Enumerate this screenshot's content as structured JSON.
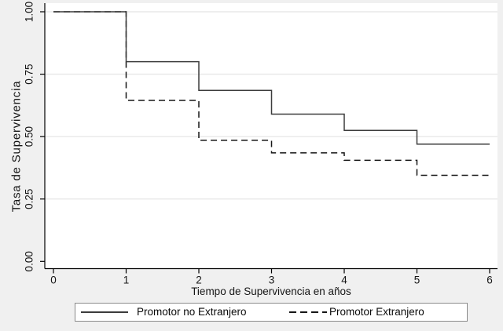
{
  "colors": {
    "figure_background": "#f0f0f0",
    "plot_background": "#ffffff",
    "gridline": "#e8e8e8",
    "axis": "#000000",
    "solid_series": "#3c3c3c",
    "dashed_series": "#161616",
    "legend_border": "#8a8a8a",
    "text": "#161616"
  },
  "chart_data": {
    "type": "line",
    "subtype": "kaplan-meier-step",
    "title": "",
    "xlabel": "Tiempo de Supervivencia en años",
    "ylabel": "Tasa de Supervivencia",
    "xlim": [
      0,
      6
    ],
    "ylim": [
      0,
      1
    ],
    "xticks": [
      "0",
      "1",
      "2",
      "3",
      "4",
      "5",
      "6"
    ],
    "yticks": [
      "0.00",
      "0.25",
      "0.50",
      "0.75",
      "1.00"
    ],
    "gridline_values": [
      0.25,
      0.5,
      0.75,
      1.0
    ],
    "grid": true,
    "legend_position": "bottom-center",
    "series": [
      {
        "name": "Promotor no Extranjero",
        "style": "solid",
        "steps": [
          [
            0,
            1.0
          ],
          [
            1,
            0.8
          ],
          [
            2,
            0.685
          ],
          [
            3,
            0.59
          ],
          [
            4,
            0.525
          ],
          [
            5,
            0.47
          ],
          [
            6,
            0.47
          ]
        ]
      },
      {
        "name": "Promotor Extranjero",
        "style": "dashed",
        "steps": [
          [
            0,
            1.0
          ],
          [
            1,
            0.645
          ],
          [
            2,
            0.485
          ],
          [
            3,
            0.435
          ],
          [
            4,
            0.405
          ],
          [
            5,
            0.345
          ],
          [
            6,
            0.345
          ]
        ]
      }
    ]
  }
}
